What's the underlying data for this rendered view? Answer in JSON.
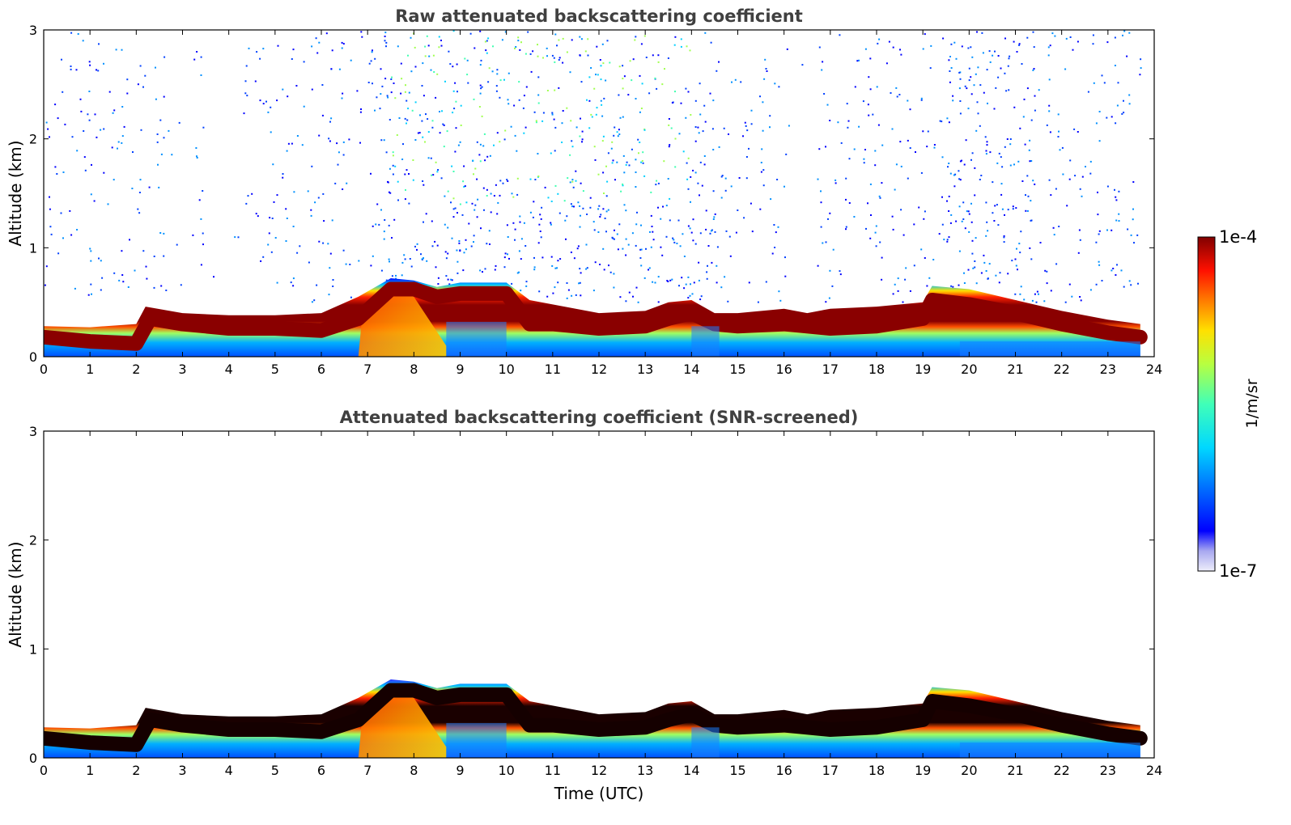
{
  "chart_data": [
    {
      "type": "heatmap",
      "title": "Raw attenuated backscattering coefficient",
      "xlabel": "",
      "ylabel": "Altitude (km)",
      "xlim": [
        0,
        24
      ],
      "ylim": [
        0,
        3
      ],
      "xticks": [
        0,
        1,
        2,
        3,
        4,
        5,
        6,
        7,
        8,
        9,
        10,
        11,
        12,
        13,
        14,
        15,
        16,
        17,
        18,
        19,
        20,
        21,
        22,
        23,
        24
      ],
      "yticks": [
        0,
        1,
        2,
        3
      ],
      "colormap": "jet",
      "data_end_time": 23.7,
      "boundary_layer_top_km": [
        [
          0,
          0.28
        ],
        [
          1,
          0.27
        ],
        [
          2,
          0.3
        ],
        [
          2.2,
          0.46
        ],
        [
          3,
          0.4
        ],
        [
          4,
          0.38
        ],
        [
          5,
          0.38
        ],
        [
          6,
          0.4
        ],
        [
          6.8,
          0.55
        ],
        [
          7.5,
          0.72
        ],
        [
          8,
          0.7
        ],
        [
          8.5,
          0.64
        ],
        [
          9,
          0.68
        ],
        [
          10,
          0.68
        ],
        [
          10.5,
          0.52
        ],
        [
          11,
          0.48
        ],
        [
          12,
          0.4
        ],
        [
          13,
          0.42
        ],
        [
          13.5,
          0.5
        ],
        [
          14,
          0.52
        ],
        [
          14.5,
          0.4
        ],
        [
          15,
          0.4
        ],
        [
          16,
          0.44
        ],
        [
          16.5,
          0.4
        ],
        [
          17,
          0.44
        ],
        [
          18,
          0.46
        ],
        [
          19,
          0.5
        ],
        [
          19.2,
          0.65
        ],
        [
          20,
          0.62
        ],
        [
          21,
          0.52
        ],
        [
          22,
          0.42
        ],
        [
          23,
          0.34
        ],
        [
          23.7,
          0.3
        ]
      ],
      "aerosol_layer_center_km": [
        [
          0,
          0.18
        ],
        [
          1,
          0.14
        ],
        [
          2,
          0.12
        ],
        [
          2.3,
          0.35
        ],
        [
          3,
          0.3
        ],
        [
          4,
          0.26
        ],
        [
          5,
          0.26
        ],
        [
          6,
          0.24
        ],
        [
          6.8,
          0.35
        ],
        [
          7.5,
          0.62
        ],
        [
          8,
          0.62
        ],
        [
          8.5,
          0.55
        ],
        [
          9,
          0.58
        ],
        [
          10,
          0.58
        ],
        [
          10.5,
          0.3
        ],
        [
          11,
          0.3
        ],
        [
          12,
          0.26
        ],
        [
          13,
          0.28
        ],
        [
          13.5,
          0.35
        ],
        [
          14,
          0.4
        ],
        [
          14.5,
          0.3
        ],
        [
          15,
          0.28
        ],
        [
          16,
          0.3
        ],
        [
          17,
          0.26
        ],
        [
          18,
          0.28
        ],
        [
          19,
          0.35
        ],
        [
          19.2,
          0.52
        ],
        [
          20,
          0.48
        ],
        [
          21,
          0.4
        ],
        [
          22,
          0.3
        ],
        [
          23,
          0.22
        ],
        [
          23.7,
          0.18
        ]
      ]
    },
    {
      "type": "heatmap",
      "title": "Attenuated backscattering coefficient (SNR-screened)",
      "xlabel": "Time (UTC)",
      "ylabel": "Altitude (km)",
      "xlim": [
        0,
        24
      ],
      "ylim": [
        0,
        3
      ],
      "xticks": [
        0,
        1,
        2,
        3,
        4,
        5,
        6,
        7,
        8,
        9,
        10,
        11,
        12,
        13,
        14,
        15,
        16,
        17,
        18,
        19,
        20,
        21,
        22,
        23,
        24
      ],
      "yticks": [
        0,
        1,
        2,
        3
      ],
      "colormap": "jet",
      "screened": true
    }
  ],
  "colorbar": {
    "max_label": "1e-4",
    "min_label": "1e-7",
    "unit_label": "1/m/sr",
    "colors": [
      "#e8e8f8",
      "#b0b0f0",
      "#0000ff",
      "#0080ff",
      "#00d8ff",
      "#40ffb0",
      "#b0ff40",
      "#ffe000",
      "#ff7000",
      "#ff1000",
      "#a00000",
      "#800000"
    ]
  }
}
